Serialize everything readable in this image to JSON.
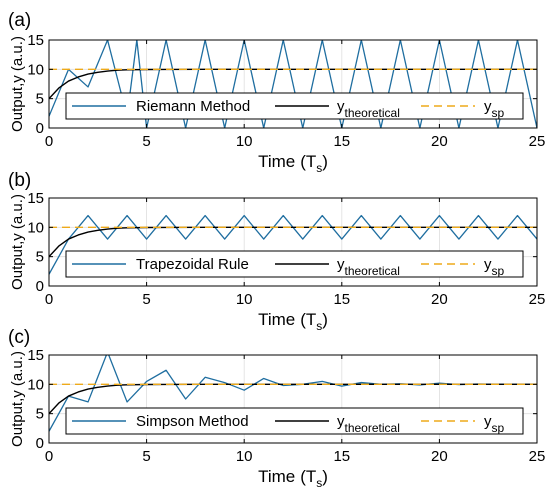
{
  "colors": {
    "numeric": "#1f6ea0",
    "theoretical": "#000000",
    "setpoint": "#eeaa1a",
    "grid": "#dedede",
    "axes": "#000000"
  },
  "chart_data": [
    {
      "type": "line",
      "panel_label": "(a)",
      "xlabel": "Time",
      "xlabel_sub": "s",
      "xlabel_prefix": "(T",
      "xlabel_suffix": ")",
      "ylabel": "Output,y (a.u.)",
      "xlim": [
        0,
        25
      ],
      "ylim": [
        0,
        15
      ],
      "xticks": [
        "0",
        "5",
        "10",
        "15",
        "20",
        "25"
      ],
      "yticks": [
        "0",
        "5",
        "10",
        "15"
      ],
      "grid": true,
      "legend_position": "bottom",
      "series": [
        {
          "name": "Riemann Method",
          "style": "numeric",
          "x": [
            0,
            1,
            2,
            3,
            4,
            4.5,
            5,
            6,
            7,
            8,
            9,
            10,
            11,
            12,
            13,
            14,
            15,
            16,
            17,
            18,
            19,
            20,
            21,
            22,
            23,
            24,
            25
          ],
          "y": [
            2,
            10,
            7,
            15,
            2,
            15,
            0,
            15,
            0,
            15,
            0,
            15,
            0,
            15,
            0,
            15,
            0,
            15,
            0,
            15,
            0,
            15,
            0,
            15,
            0,
            15,
            0
          ]
        },
        {
          "name": "y",
          "name_sub": "theoretical",
          "style": "theoretical",
          "x": [
            0,
            0.5,
            1,
            1.5,
            2,
            2.5,
            3,
            3.5,
            4,
            5,
            6,
            8,
            10,
            15,
            20,
            25
          ],
          "y": [
            5,
            6.8,
            8.0,
            8.7,
            9.2,
            9.5,
            9.7,
            9.85,
            9.92,
            9.97,
            9.99,
            10,
            10,
            10,
            10,
            10
          ]
        },
        {
          "name": "y",
          "name_sub": "sp",
          "style": "setpoint",
          "x": [
            0,
            25
          ],
          "y": [
            10,
            10
          ]
        }
      ]
    },
    {
      "type": "line",
      "panel_label": "(b)",
      "xlabel": "Time",
      "xlabel_sub": "s",
      "xlabel_prefix": "(T",
      "xlabel_suffix": ")",
      "ylabel": "Output,y (a.u.)",
      "xlim": [
        0,
        25
      ],
      "ylim": [
        0,
        15
      ],
      "xticks": [
        "0",
        "5",
        "10",
        "15",
        "20",
        "25"
      ],
      "yticks": [
        "0",
        "5",
        "10",
        "15"
      ],
      "grid": true,
      "legend_position": "bottom",
      "series": [
        {
          "name": "Trapezoidal Rule",
          "style": "numeric",
          "x": [
            0,
            1,
            2,
            3,
            4,
            5,
            6,
            7,
            8,
            9,
            10,
            11,
            12,
            13,
            14,
            15,
            16,
            17,
            18,
            19,
            20,
            21,
            22,
            23,
            24,
            25
          ],
          "y": [
            2,
            8,
            12,
            8,
            12,
            8,
            12,
            8,
            12,
            8,
            12,
            8,
            12,
            8,
            12,
            8,
            12,
            8,
            12,
            8,
            12,
            8,
            12,
            8,
            12,
            8
          ]
        },
        {
          "name": "y",
          "name_sub": "theoretical",
          "style": "theoretical",
          "x": [
            0,
            0.5,
            1,
            1.5,
            2,
            2.5,
            3,
            3.5,
            4,
            5,
            6,
            8,
            10,
            15,
            20,
            25
          ],
          "y": [
            5,
            6.8,
            8.0,
            8.7,
            9.2,
            9.5,
            9.7,
            9.85,
            9.92,
            9.97,
            9.99,
            10,
            10,
            10,
            10,
            10
          ]
        },
        {
          "name": "y",
          "name_sub": "sp",
          "style": "setpoint",
          "x": [
            0,
            25
          ],
          "y": [
            10,
            10
          ]
        }
      ]
    },
    {
      "type": "line",
      "panel_label": "(c)",
      "xlabel": "Time",
      "xlabel_sub": "s",
      "xlabel_prefix": "(T",
      "xlabel_suffix": ")",
      "ylabel": "Output,y (a.u.)",
      "xlim": [
        0,
        25
      ],
      "ylim": [
        0,
        15
      ],
      "xticks": [
        "0",
        "5",
        "10",
        "15",
        "20",
        "25"
      ],
      "yticks": [
        "0",
        "5",
        "10",
        "15"
      ],
      "grid": true,
      "legend_position": "bottom",
      "series": [
        {
          "name": "Simpson Method",
          "style": "numeric",
          "x": [
            0,
            1,
            2,
            3,
            4,
            5,
            6,
            7,
            8,
            9,
            10,
            11,
            12,
            13,
            14,
            15,
            16,
            17,
            18,
            19,
            20,
            21,
            22,
            23,
            24,
            25
          ],
          "y": [
            2,
            8,
            7,
            15.5,
            7,
            10.5,
            12.4,
            7.5,
            11.2,
            10.3,
            9,
            11,
            9.8,
            10,
            10.5,
            9.7,
            10.3,
            10,
            10.1,
            9.9,
            10.2,
            9.95,
            10.05,
            10,
            10,
            10
          ]
        },
        {
          "name": "y",
          "name_sub": "theoretical",
          "style": "theoretical",
          "x": [
            0,
            0.5,
            1,
            1.5,
            2,
            2.5,
            3,
            3.5,
            4,
            5,
            6,
            8,
            10,
            15,
            20,
            25
          ],
          "y": [
            5,
            6.8,
            8.0,
            8.7,
            9.2,
            9.5,
            9.7,
            9.85,
            9.92,
            9.97,
            9.99,
            10,
            10,
            10,
            10,
            10
          ]
        },
        {
          "name": "y",
          "name_sub": "sp",
          "style": "setpoint",
          "x": [
            0,
            25
          ],
          "y": [
            10,
            10
          ]
        }
      ]
    }
  ]
}
